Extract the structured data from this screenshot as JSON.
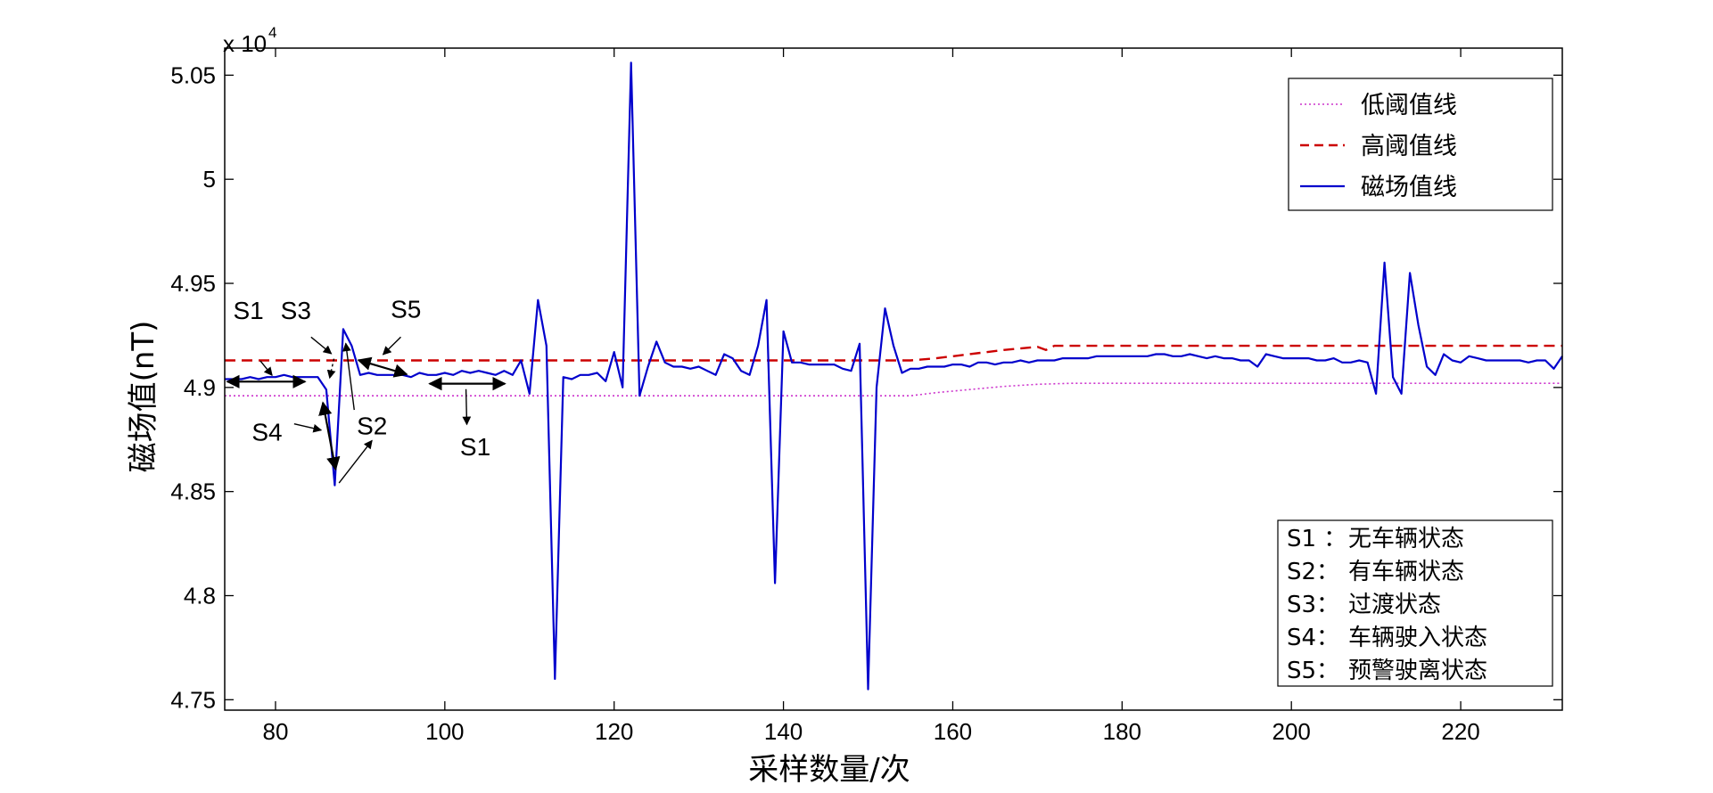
{
  "chart_data": {
    "type": "line",
    "xlabel": "采样数量/次",
    "ylabel": "磁场值(nT)",
    "y_exponent_label": "x 10",
    "y_exponent_power": "4",
    "xlim": [
      74,
      232
    ],
    "ylim": [
      4.745,
      5.063
    ],
    "x_ticks": [
      80,
      100,
      120,
      140,
      160,
      180,
      200,
      220
    ],
    "x_tick_labels": [
      "80",
      "100",
      "120",
      "140",
      "160",
      "180",
      "200",
      "220"
    ],
    "y_ticks": [
      4.75,
      4.8,
      4.85,
      4.9,
      4.95,
      5.0,
      5.05
    ],
    "y_tick_labels": [
      "4.75",
      "4.8",
      "4.85",
      "4.9",
      "4.95",
      "5",
      "5.05"
    ],
    "grid": false,
    "legend_position": "top-right",
    "series": [
      {
        "name": "低阈值线",
        "color": "#cc33cc",
        "style": "dotted",
        "points": [
          [
            74,
            4.896
          ],
          [
            155,
            4.896
          ],
          [
            158,
            4.8975
          ],
          [
            162,
            4.899
          ],
          [
            166,
            4.9005
          ],
          [
            170,
            4.9015
          ],
          [
            174,
            4.902
          ],
          [
            232,
            4.902
          ]
        ]
      },
      {
        "name": "高阈值线",
        "color": "#cc0000",
        "style": "dashed",
        "points": [
          [
            74,
            4.913
          ],
          [
            155,
            4.913
          ],
          [
            158,
            4.914
          ],
          [
            162,
            4.916
          ],
          [
            166,
            4.918
          ],
          [
            170,
            4.9195
          ],
          [
            171,
            4.918
          ],
          [
            172,
            4.92
          ],
          [
            232,
            4.92
          ]
        ]
      },
      {
        "name": "磁场值线",
        "color": "#0000cc",
        "style": "solid",
        "points": [
          [
            74,
            4.904
          ],
          [
            75,
            4.904
          ],
          [
            76,
            4.904
          ],
          [
            77,
            4.905
          ],
          [
            78,
            4.904
          ],
          [
            79,
            4.905
          ],
          [
            80,
            4.905
          ],
          [
            81,
            4.906
          ],
          [
            82,
            4.905
          ],
          [
            83,
            4.905
          ],
          [
            84,
            4.905
          ],
          [
            85,
            4.905
          ],
          [
            86,
            4.899
          ],
          [
            87,
            4.853
          ],
          [
            88,
            4.928
          ],
          [
            89,
            4.92
          ],
          [
            90,
            4.906
          ],
          [
            91,
            4.907
          ],
          [
            92,
            4.906
          ],
          [
            93,
            4.906
          ],
          [
            94,
            4.906
          ],
          [
            95,
            4.906
          ],
          [
            96,
            4.905
          ],
          [
            97,
            4.907
          ],
          [
            98,
            4.906
          ],
          [
            99,
            4.906
          ],
          [
            100,
            4.907
          ],
          [
            101,
            4.906
          ],
          [
            102,
            4.908
          ],
          [
            103,
            4.907
          ],
          [
            104,
            4.908
          ],
          [
            105,
            4.907
          ],
          [
            106,
            4.906
          ],
          [
            107,
            4.908
          ],
          [
            108,
            4.906
          ],
          [
            109,
            4.913
          ],
          [
            110,
            4.897
          ],
          [
            111,
            4.942
          ],
          [
            112,
            4.92
          ],
          [
            113,
            4.76
          ],
          [
            114,
            4.905
          ],
          [
            115,
            4.904
          ],
          [
            116,
            4.906
          ],
          [
            117,
            4.906
          ],
          [
            118,
            4.907
          ],
          [
            119,
            4.903
          ],
          [
            120,
            4.917
          ],
          [
            121,
            4.9
          ],
          [
            122,
            5.056
          ],
          [
            123,
            4.896
          ],
          [
            124,
            4.91
          ],
          [
            125,
            4.922
          ],
          [
            126,
            4.912
          ],
          [
            127,
            4.91
          ],
          [
            128,
            4.91
          ],
          [
            129,
            4.909
          ],
          [
            130,
            4.91
          ],
          [
            131,
            4.908
          ],
          [
            132,
            4.906
          ],
          [
            133,
            4.916
          ],
          [
            134,
            4.914
          ],
          [
            135,
            4.908
          ],
          [
            136,
            4.906
          ],
          [
            137,
            4.92
          ],
          [
            138,
            4.942
          ],
          [
            139,
            4.806
          ],
          [
            140,
            4.927
          ],
          [
            141,
            4.912
          ],
          [
            142,
            4.912
          ],
          [
            143,
            4.911
          ],
          [
            144,
            4.911
          ],
          [
            145,
            4.911
          ],
          [
            146,
            4.911
          ],
          [
            147,
            4.909
          ],
          [
            148,
            4.908
          ],
          [
            149,
            4.921
          ],
          [
            150,
            4.755
          ],
          [
            151,
            4.9
          ],
          [
            152,
            4.938
          ],
          [
            153,
            4.92
          ],
          [
            154,
            4.907
          ],
          [
            155,
            4.909
          ],
          [
            156,
            4.909
          ],
          [
            157,
            4.91
          ],
          [
            158,
            4.91
          ],
          [
            159,
            4.91
          ],
          [
            160,
            4.911
          ],
          [
            161,
            4.911
          ],
          [
            162,
            4.91
          ],
          [
            163,
            4.912
          ],
          [
            164,
            4.912
          ],
          [
            165,
            4.911
          ],
          [
            166,
            4.912
          ],
          [
            167,
            4.912
          ],
          [
            168,
            4.913
          ],
          [
            169,
            4.912
          ],
          [
            170,
            4.913
          ],
          [
            171,
            4.913
          ],
          [
            172,
            4.913
          ],
          [
            173,
            4.914
          ],
          [
            174,
            4.914
          ],
          [
            175,
            4.914
          ],
          [
            176,
            4.914
          ],
          [
            177,
            4.915
          ],
          [
            178,
            4.915
          ],
          [
            179,
            4.915
          ],
          [
            180,
            4.915
          ],
          [
            181,
            4.915
          ],
          [
            182,
            4.915
          ],
          [
            183,
            4.915
          ],
          [
            184,
            4.916
          ],
          [
            185,
            4.916
          ],
          [
            186,
            4.915
          ],
          [
            187,
            4.915
          ],
          [
            188,
            4.916
          ],
          [
            189,
            4.915
          ],
          [
            190,
            4.914
          ],
          [
            191,
            4.915
          ],
          [
            192,
            4.914
          ],
          [
            193,
            4.914
          ],
          [
            194,
            4.913
          ],
          [
            195,
            4.913
          ],
          [
            196,
            4.91
          ],
          [
            197,
            4.916
          ],
          [
            198,
            4.915
          ],
          [
            199,
            4.914
          ],
          [
            200,
            4.914
          ],
          [
            201,
            4.914
          ],
          [
            202,
            4.914
          ],
          [
            203,
            4.913
          ],
          [
            204,
            4.913
          ],
          [
            205,
            4.914
          ],
          [
            206,
            4.912
          ],
          [
            207,
            4.912
          ],
          [
            208,
            4.913
          ],
          [
            209,
            4.912
          ],
          [
            210,
            4.897
          ],
          [
            211,
            4.96
          ],
          [
            212,
            4.905
          ],
          [
            213,
            4.897
          ],
          [
            214,
            4.955
          ],
          [
            215,
            4.93
          ],
          [
            216,
            4.91
          ],
          [
            217,
            4.906
          ],
          [
            218,
            4.916
          ],
          [
            219,
            4.913
          ],
          [
            220,
            4.912
          ],
          [
            221,
            4.915
          ],
          [
            222,
            4.914
          ],
          [
            223,
            4.913
          ],
          [
            224,
            4.913
          ],
          [
            225,
            4.913
          ],
          [
            226,
            4.913
          ],
          [
            227,
            4.913
          ],
          [
            228,
            4.912
          ],
          [
            229,
            4.913
          ],
          [
            230,
            4.913
          ],
          [
            231,
            4.909
          ],
          [
            232,
            4.915
          ]
        ]
      }
    ],
    "annotations": [
      {
        "text": "S1",
        "text_at": [
          75.0,
          4.9328
        ],
        "arrows": [
          {
            "type": "double",
            "from": [
              74.3,
              4.9028
            ],
            "to": [
              83.5,
              4.9028
            ]
          },
          {
            "type": "leader",
            "from": [
              78.2,
              4.9128
            ],
            "to": [
              79.6,
              4.9058
            ]
          }
        ]
      },
      {
        "text": "S3",
        "text_at": [
          80.6,
          4.9328
        ],
        "arrows": [
          {
            "type": "leader",
            "from": [
              84.2,
              4.9242
            ],
            "to": [
              86.6,
              4.9162
            ]
          },
          {
            "type": "dashed",
            "from": [
              86.9,
              4.9138
            ],
            "to": [
              86.4,
              4.9045
            ]
          }
        ]
      },
      {
        "text": "S5",
        "text_at": [
          93.6,
          4.9335
        ],
        "arrows": [
          {
            "type": "double",
            "from": [
              89.8,
              4.9131
            ],
            "to": [
              95.5,
              4.9063
            ]
          },
          {
            "type": "leader",
            "from": [
              94.8,
              4.9242
            ],
            "to": [
              92.7,
              4.9158
            ]
          }
        ]
      },
      {
        "text": "S4",
        "text_at": [
          77.2,
          4.8745
        ],
        "arrows": [
          {
            "type": "double",
            "from": [
              85.6,
              4.8927
            ],
            "to": [
              87.1,
              4.8606
            ]
          },
          {
            "type": "leader",
            "from": [
              82.2,
              4.8825
            ],
            "to": [
              85.4,
              4.8795
            ]
          }
        ]
      },
      {
        "text": "S2",
        "text_at": [
          89.6,
          4.8775
        ],
        "arrows": [
          {
            "type": "leader",
            "from": [
              89.3,
              4.8892
            ],
            "to": [
              88.3,
              4.9212
            ]
          },
          {
            "type": "leader",
            "from": [
              87.5,
              4.8541
            ],
            "to": [
              91.4,
              4.8745
            ]
          }
        ]
      },
      {
        "text": "S1",
        "text_at": [
          101.8,
          4.8675
        ],
        "arrows": [
          {
            "type": "double",
            "from": [
              98.2,
              4.9018
            ],
            "to": [
              107.1,
              4.9018
            ]
          },
          {
            "type": "leader",
            "from": [
              102.5,
              4.8992
            ],
            "to": [
              102.6,
              4.8822
            ]
          }
        ]
      }
    ]
  },
  "state_legend": [
    {
      "code": "S1",
      "sep": " ：",
      "desc": "无车辆状态"
    },
    {
      "code": "S2",
      "sep": "：",
      "desc": "有车辆状态"
    },
    {
      "code": "S3",
      "sep": "：",
      "desc": "过渡状态"
    },
    {
      "code": "S4",
      "sep": "：",
      "desc": "车辆驶入状态"
    },
    {
      "code": "S5",
      "sep": "：",
      "desc": "预警驶离状态"
    }
  ]
}
